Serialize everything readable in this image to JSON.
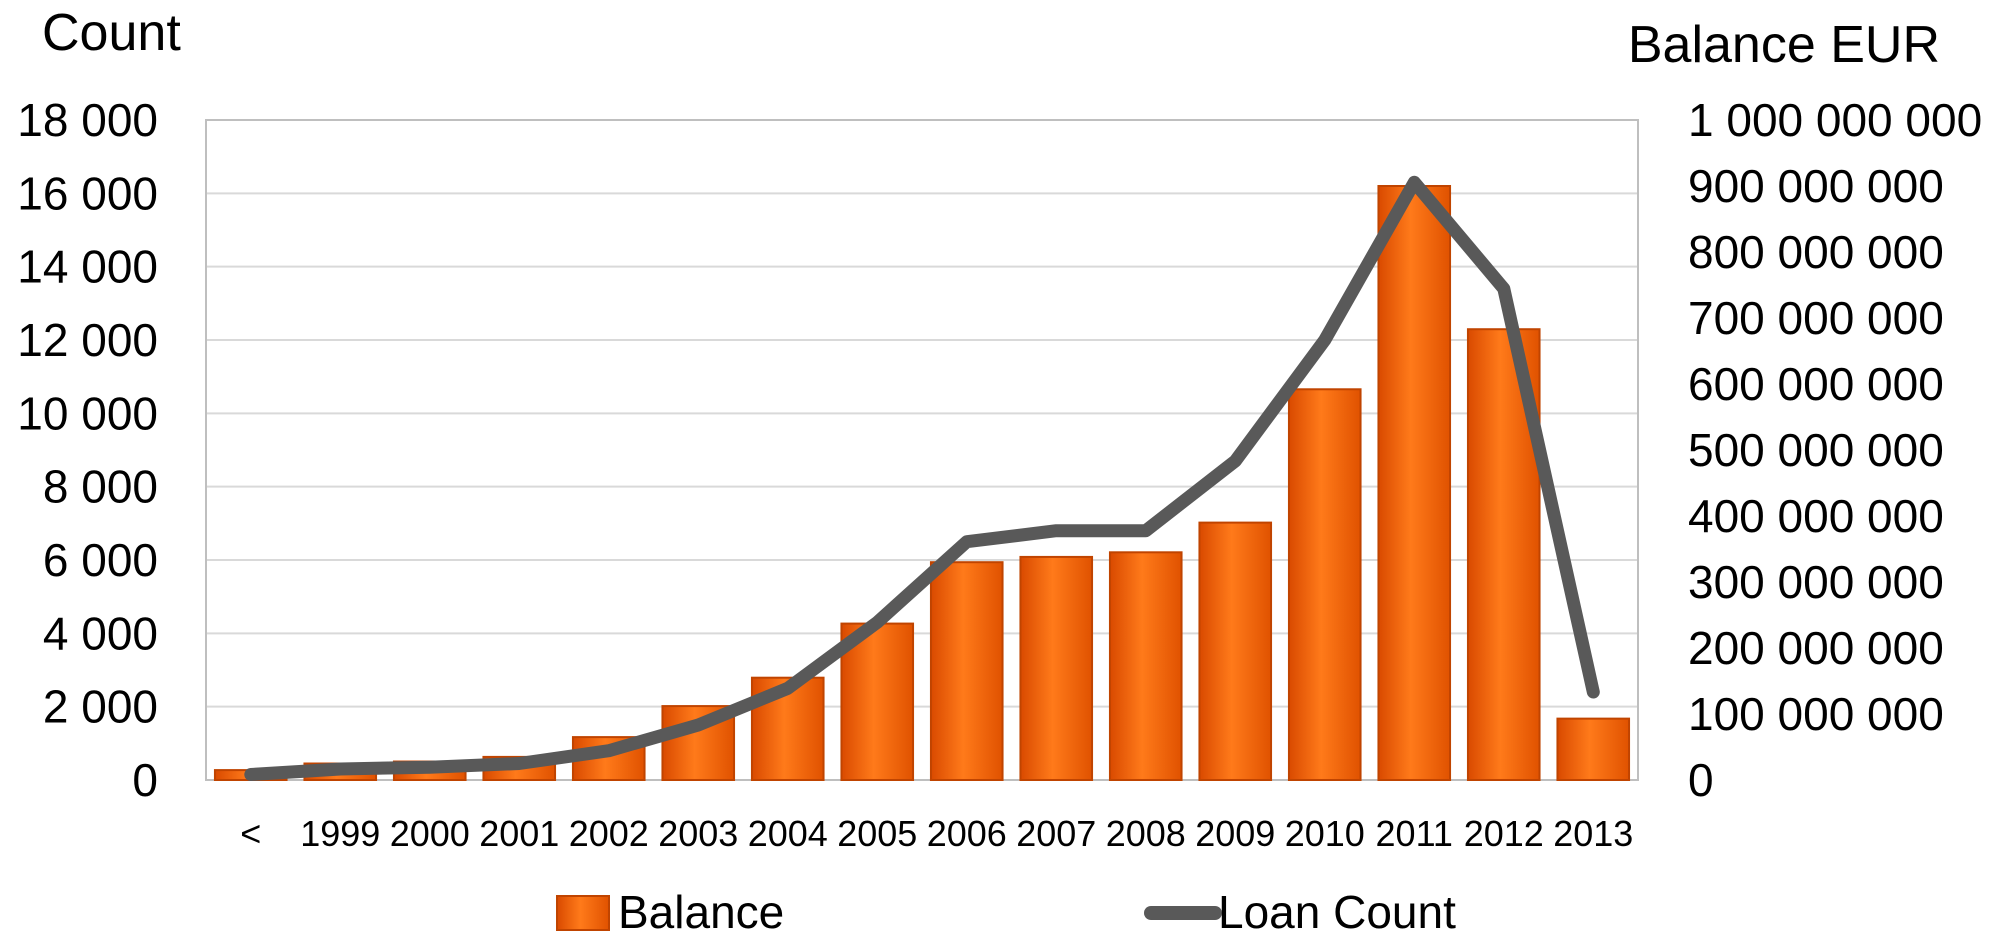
{
  "chart_data": {
    "type": "bar",
    "categories": [
      "<",
      "1999",
      "2000",
      "2001",
      "2002",
      "2003",
      "2004",
      "2005",
      "2006",
      "2007",
      "2008",
      "2009",
      "2010",
      "2011",
      "2012",
      "2013"
    ],
    "left_axis": {
      "title": "Count",
      "ylim": [
        0,
        18000
      ],
      "ticks": [
        "0",
        "2 000",
        "4 000",
        "6 000",
        "8 000",
        "10 000",
        "12 000",
        "14 000",
        "16 000",
        "18 000"
      ]
    },
    "right_axis": {
      "title": "Balance EUR",
      "ylim": [
        0,
        1000000000
      ],
      "ticks": [
        "0",
        "100 000 000",
        "200 000 000",
        "300 000 000",
        "400 000 000",
        "500 000 000",
        "600 000 000",
        "700 000 000",
        "800 000 000",
        "900 000 000",
        "1 000 000 000"
      ]
    },
    "series": [
      {
        "name": "Balance",
        "type": "bar",
        "axis": "right",
        "color": "#e8590c",
        "values": [
          15000000,
          25000000,
          28000000,
          35000000,
          65000000,
          112000000,
          155000000,
          237000000,
          330000000,
          338000000,
          345000000,
          390000000,
          592000000,
          900000000,
          683000000,
          93000000
        ]
      },
      {
        "name": "Loan Count",
        "type": "line",
        "axis": "left",
        "color": "#595959",
        "values": [
          150,
          300,
          350,
          450,
          800,
          1500,
          2500,
          4300,
          6500,
          6800,
          6800,
          8700,
          12000,
          16300,
          13400,
          2400
        ]
      }
    ],
    "grid": true,
    "legend_position": "bottom"
  }
}
